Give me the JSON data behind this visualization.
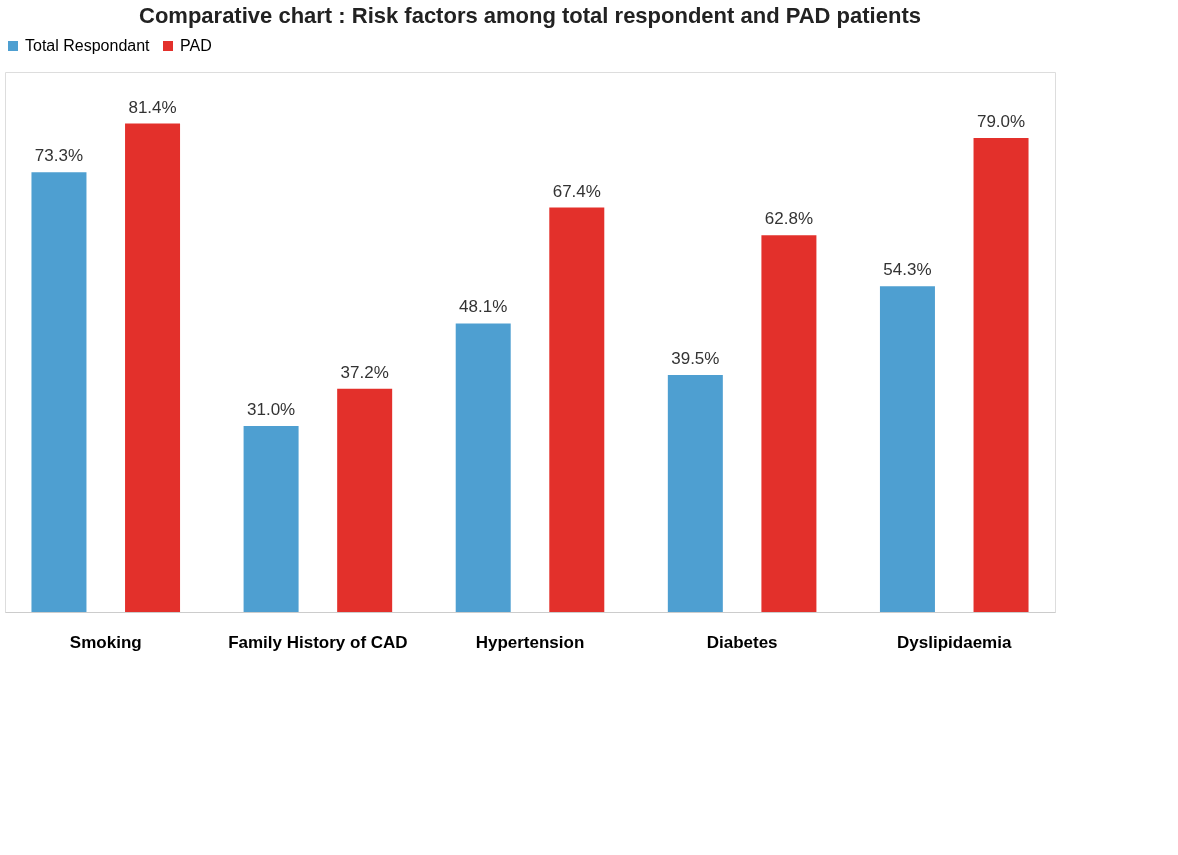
{
  "chart_data": {
    "type": "bar",
    "title": "Comparative chart : Risk factors among total respondent and PAD patients",
    "categories": [
      "Smoking",
      "Family History of CAD",
      "Hypertension",
      "Diabetes",
      "Dyslipidaemia"
    ],
    "series": [
      {
        "name": "Total Respondant",
        "color": "#4e9fd1",
        "values": [
          73.3,
          31.0,
          48.1,
          39.5,
          54.3
        ],
        "value_labels": [
          "73.3%",
          "31.0%",
          "48.1%",
          "39.5%",
          "54.3%"
        ]
      },
      {
        "name": "PAD",
        "color": "#e3302b",
        "values": [
          81.4,
          37.2,
          67.4,
          62.8,
          79.0
        ],
        "value_labels": [
          "81.4%",
          "37.2%",
          "67.4%",
          "62.8%",
          "79.0%"
        ]
      }
    ],
    "legend": "top",
    "grid": false
  }
}
